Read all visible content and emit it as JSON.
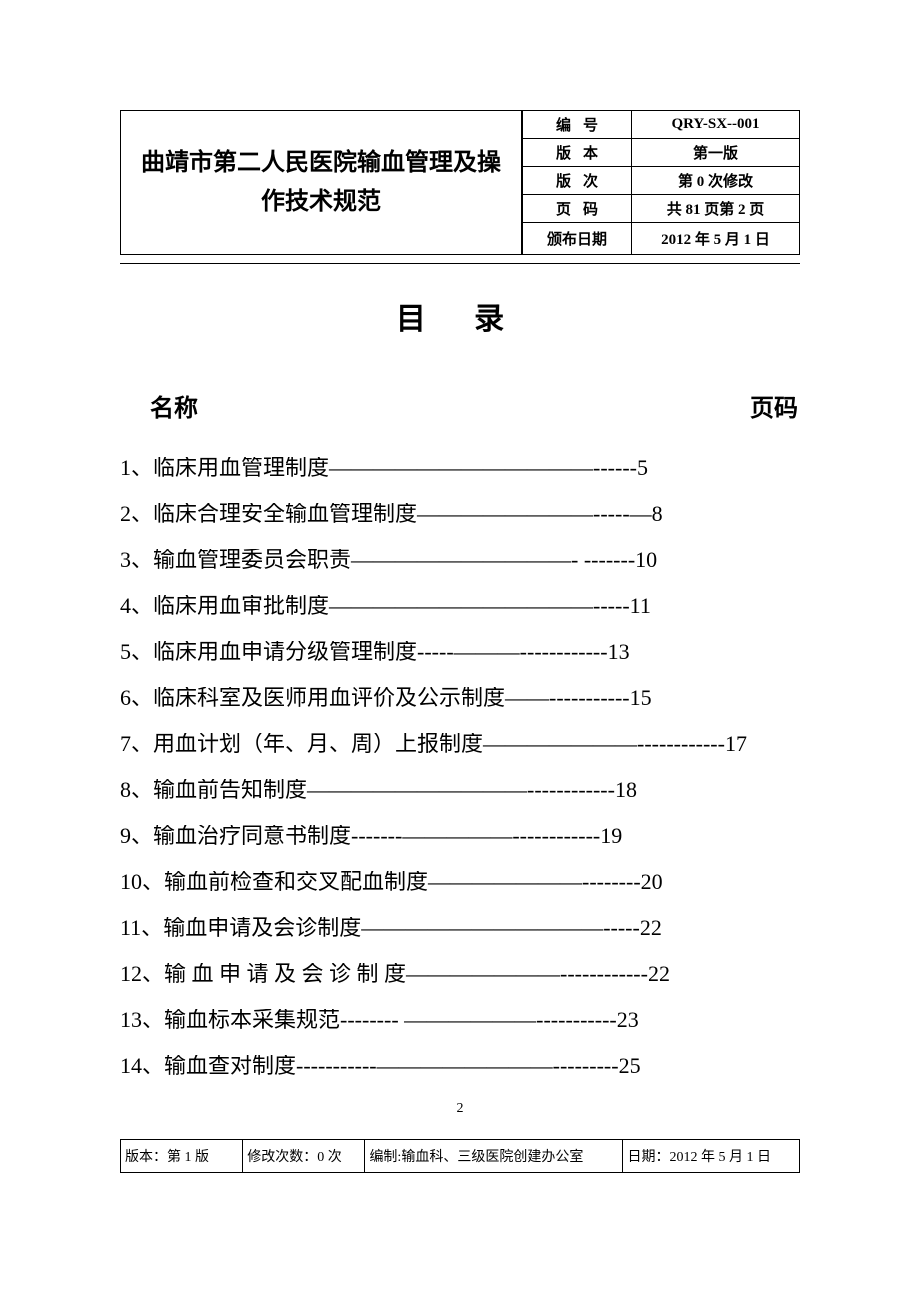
{
  "header": {
    "title": "曲靖市第二人民医院输血管理及操作技术规范",
    "rows": [
      {
        "label": "编号",
        "value": "QRY-SX--001"
      },
      {
        "label": "版本",
        "value": "第一版"
      },
      {
        "label": "版次",
        "value": "第 0 次修改"
      },
      {
        "label": "页码",
        "value": "共 81 页第 2 页"
      },
      {
        "label": "颁布日期",
        "value": "2012 年 5 月 1 日"
      }
    ]
  },
  "toc": {
    "title": "目  录",
    "col_name": "名称",
    "col_page": "页码",
    "items": [
      {
        "num": "1、",
        "title": "临床用血管理制度",
        "leader": "————————————------",
        "page": "5"
      },
      {
        "num": "2、",
        "title": "临床合理安全输血管理制度",
        "leader": "————————-----—",
        "page": "8"
      },
      {
        "num": "3、",
        "title": "输血管理委员会职责",
        "leader": "——————————- -------",
        "page": "10"
      },
      {
        "num": "4、",
        "title": "临床用血审批制度",
        "leader": "————————————-----",
        "page": "11"
      },
      {
        "num": "5、",
        "title": "临床用血申请分级管理制度",
        "leader": "-----———------------",
        "page": "13"
      },
      {
        "num": "6、",
        "title": "临床科室及医师用血评价及公示制度",
        "leader": "——-----------",
        "page": "15"
      },
      {
        "num": "7、",
        "title": "用血计划（年、月、周）上报制度",
        "leader": "———————------------",
        "page": "17"
      },
      {
        "num": "8、",
        "title": "输血前告知制度  ",
        "leader": "——————————------------",
        "page": "18"
      },
      {
        "num": "9、",
        "title": "输血治疗同意书制度",
        "leader": "-------—————------------",
        "page": "19"
      },
      {
        "num": "10、",
        "title": "输血前检查和交叉配血制度",
        "leader": "———————--------  ",
        "page": "20"
      },
      {
        "num": "11、",
        "title": "输血申请及会诊制度",
        "leader": "———————————-----",
        "page": "22"
      },
      {
        "num": "12、",
        "title": "输 血 申 请 及 会 诊 制 度",
        "leader": "———————------------",
        "page": "22"
      },
      {
        "num": "13、",
        "title": "输血标本采集规范",
        "leader": "-------- ——————-----------",
        "page": "23"
      },
      {
        "num": "14、",
        "title": "输血查对制度",
        "leader": "-----------————————---------",
        "page": "25"
      }
    ]
  },
  "footer": {
    "pagenum": "2",
    "cells": [
      "版本：第 1 版",
      "修改次数：0 次",
      "编制:输血科、三级医院创建办公室",
      "日期：2012 年 5 月 1 日"
    ],
    "widths": [
      "18%",
      "18%",
      "38%",
      "26%"
    ]
  },
  "styling": {
    "page_bg": "#ffffff",
    "text_color": "#000000",
    "border_color": "#000000",
    "title_fontsize": 24,
    "toc_title_fontsize": 30,
    "toc_row_fontsize": 22,
    "footer_fontsize": 14,
    "font_family_heading": "SimHei",
    "font_family_body": "SimSun"
  }
}
